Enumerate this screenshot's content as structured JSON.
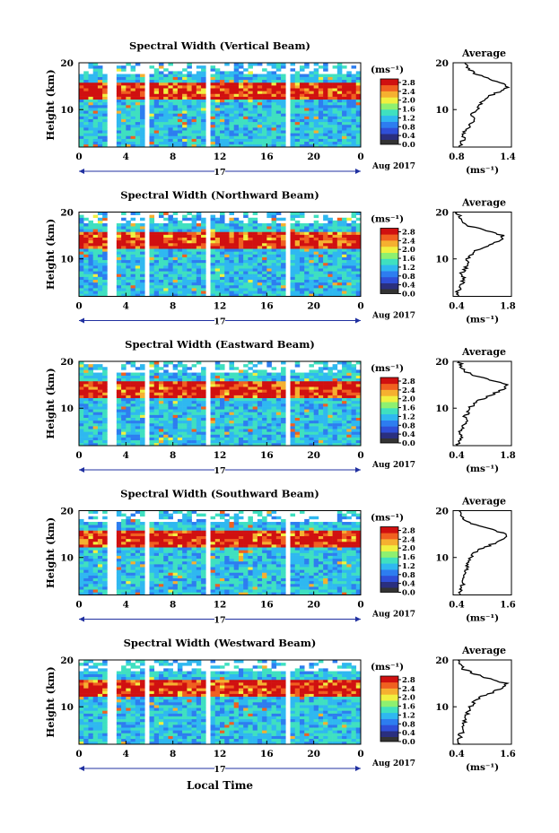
{
  "figure": {
    "xlabel": "Local Time",
    "date_label": "Aug 2017",
    "day_label": "17",
    "height_label": "Height (km)",
    "colorbar_unit": "(ms⁻¹)",
    "colorbar_ticks": [
      "2.8",
      "2.4",
      "2.0",
      "1.6",
      "1.2",
      "0.8",
      "0.4",
      "0.0"
    ],
    "average_title": "Average",
    "average_unit": "(ms⁻¹)"
  },
  "colors": {
    "colormap": [
      "#2a2f7f",
      "#2f4fd8",
      "#2d7df0",
      "#2fb8f0",
      "#3fe0c0",
      "#8ef070",
      "#f0f040",
      "#f5b030",
      "#f06020",
      "#d01010"
    ],
    "colorbar_base": "#333333"
  },
  "chart_data": [
    {
      "type": "heatmap",
      "title": "Spectral Width (Vertical Beam)",
      "x_ticks": [
        "0",
        "4",
        "8",
        "12",
        "16",
        "20",
        "0"
      ],
      "xlim": [
        0,
        24
      ],
      "y_ticks": [
        "20",
        "10"
      ],
      "ylim": [
        2,
        20
      ],
      "colorbar_range": [
        0.0,
        3.0
      ],
      "data_gaps_hours": [
        [
          2.3,
          2.6
        ],
        [
          3.0,
          3.3
        ],
        [
          5.5,
          5.8
        ],
        [
          11.0,
          11.3
        ],
        [
          17.5,
          17.8
        ]
      ],
      "average_profile": {
        "xlim": [
          0.8,
          1.4
        ],
        "x_ticks": [
          "0.8",
          "1.4"
        ],
        "y_ticks": [
          "20",
          "10"
        ],
        "height_km": [
          2,
          3,
          4,
          5,
          6,
          7,
          8,
          9,
          10,
          11,
          12,
          13,
          14,
          15,
          16,
          17,
          18,
          19,
          20
        ],
        "values": [
          0.86,
          0.88,
          0.92,
          0.9,
          0.95,
          0.98,
          1.02,
          0.97,
          1.05,
          1.08,
          1.12,
          1.18,
          1.3,
          1.36,
          1.25,
          1.1,
          1.0,
          0.95,
          0.92
        ]
      }
    },
    {
      "type": "heatmap",
      "title": "Spectral Width (Northward Beam)",
      "x_ticks": [
        "0",
        "4",
        "8",
        "12",
        "16",
        "20",
        "0"
      ],
      "xlim": [
        0,
        24
      ],
      "y_ticks": [
        "20",
        "10"
      ],
      "ylim": [
        2,
        20
      ],
      "colorbar_range": [
        0.0,
        3.0
      ],
      "data_gaps_hours": [
        [
          2.3,
          2.6
        ],
        [
          3.0,
          3.3
        ],
        [
          5.5,
          5.8
        ],
        [
          11.0,
          11.3
        ],
        [
          17.5,
          17.8
        ]
      ],
      "average_profile": {
        "xlim": [
          0.4,
          1.8
        ],
        "x_ticks": [
          "0.4",
          "1.8"
        ],
        "y_ticks": [
          "20",
          "10"
        ],
        "height_km": [
          2,
          3,
          4,
          5,
          6,
          7,
          8,
          9,
          10,
          11,
          12,
          13,
          14,
          15,
          16,
          17,
          18,
          19,
          20
        ],
        "values": [
          0.55,
          0.5,
          0.58,
          0.62,
          0.65,
          0.6,
          0.7,
          0.75,
          0.72,
          0.85,
          1.0,
          1.3,
          1.55,
          1.6,
          1.2,
          0.8,
          0.6,
          0.55,
          0.5
        ]
      }
    },
    {
      "type": "heatmap",
      "title": "Spectral Width (Eastward Beam)",
      "x_ticks": [
        "0",
        "4",
        "8",
        "12",
        "16",
        "20",
        "0"
      ],
      "xlim": [
        0,
        24
      ],
      "y_ticks": [
        "20",
        "10"
      ],
      "ylim": [
        2,
        20
      ],
      "colorbar_range": [
        0.0,
        3.0
      ],
      "data_gaps_hours": [
        [
          2.3,
          2.6
        ],
        [
          3.0,
          3.3
        ],
        [
          5.5,
          5.8
        ],
        [
          11.0,
          11.3
        ],
        [
          17.5,
          17.8
        ]
      ],
      "average_profile": {
        "xlim": [
          0.4,
          1.8
        ],
        "x_ticks": [
          "0.4",
          "1.8"
        ],
        "y_ticks": [
          "20",
          "10"
        ],
        "height_km": [
          2,
          3,
          4,
          5,
          6,
          7,
          8,
          9,
          10,
          11,
          12,
          13,
          14,
          15,
          16,
          17,
          18,
          19,
          20
        ],
        "values": [
          0.5,
          0.55,
          0.6,
          0.58,
          0.65,
          0.7,
          0.68,
          0.75,
          0.8,
          0.9,
          1.1,
          1.35,
          1.6,
          1.7,
          1.3,
          0.9,
          0.65,
          0.6,
          0.55
        ]
      }
    },
    {
      "type": "heatmap",
      "title": "Spectral Width (Southward Beam)",
      "x_ticks": [
        "0",
        "4",
        "8",
        "12",
        "16",
        "20",
        "0"
      ],
      "xlim": [
        0,
        24
      ],
      "y_ticks": [
        "20",
        "10"
      ],
      "ylim": [
        2,
        20
      ],
      "colorbar_range": [
        0.0,
        3.0
      ],
      "data_gaps_hours": [
        [
          2.3,
          2.6
        ],
        [
          3.0,
          3.3
        ],
        [
          5.5,
          5.8
        ],
        [
          11.0,
          11.3
        ],
        [
          17.5,
          17.8
        ]
      ],
      "average_profile": {
        "xlim": [
          0.4,
          1.6
        ],
        "x_ticks": [
          "0.4",
          "1.6"
        ],
        "y_ticks": [
          "20",
          "10"
        ],
        "height_km": [
          2,
          3,
          4,
          5,
          6,
          7,
          8,
          9,
          10,
          11,
          12,
          13,
          14,
          15,
          16,
          17,
          18,
          19,
          20
        ],
        "values": [
          0.5,
          0.55,
          0.58,
          0.62,
          0.6,
          0.66,
          0.7,
          0.72,
          0.78,
          0.85,
          1.0,
          1.25,
          1.45,
          1.5,
          1.2,
          0.85,
          0.65,
          0.58,
          0.52
        ]
      }
    },
    {
      "type": "heatmap",
      "title": "Spectral Width (Westward Beam)",
      "x_ticks": [
        "0",
        "4",
        "8",
        "12",
        "16",
        "20",
        "0"
      ],
      "xlim": [
        0,
        24
      ],
      "y_ticks": [
        "20",
        "10"
      ],
      "ylim": [
        2,
        20
      ],
      "colorbar_range": [
        0.0,
        3.0
      ],
      "data_gaps_hours": [
        [
          2.3,
          2.6
        ],
        [
          3.0,
          3.3
        ],
        [
          5.5,
          5.8
        ],
        [
          11.0,
          11.3
        ],
        [
          17.5,
          17.8
        ]
      ],
      "average_profile": {
        "xlim": [
          0.4,
          1.6
        ],
        "x_ticks": [
          "0.4",
          "1.6"
        ],
        "y_ticks": [
          "20",
          "10"
        ],
        "height_km": [
          2,
          3,
          4,
          5,
          6,
          7,
          8,
          9,
          10,
          11,
          12,
          13,
          14,
          15,
          16,
          17,
          18,
          19,
          20
        ],
        "values": [
          0.5,
          0.52,
          0.55,
          0.6,
          0.62,
          0.65,
          0.68,
          0.72,
          0.76,
          0.82,
          0.95,
          1.2,
          1.4,
          1.48,
          1.15,
          0.85,
          0.62,
          0.56,
          0.5
        ]
      }
    }
  ]
}
